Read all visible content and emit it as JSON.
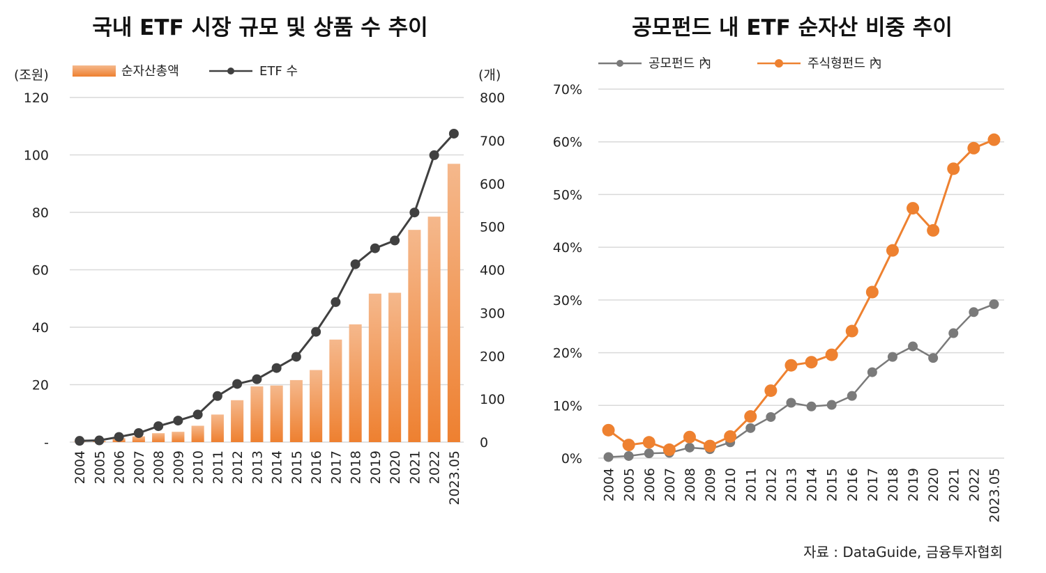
{
  "source": "자료 : DataGuide, 금융투자협회",
  "chart_data": [
    {
      "type": "bar+line",
      "title": "국내 ETF 시장 규모 및 상품 수 추이",
      "categories": [
        "2004",
        "2005",
        "2006",
        "2007",
        "2008",
        "2009",
        "2010",
        "2011",
        "2012",
        "2013",
        "2014",
        "2015",
        "2016",
        "2017",
        "2018",
        "2019",
        "2020",
        "2021",
        "2022",
        "2023.05"
      ],
      "left_unit": "(조원)",
      "right_unit": "(개)",
      "left_ylim": [
        0,
        120
      ],
      "right_ylim": [
        0,
        800
      ],
      "left_ticks": [
        "120",
        "100",
        "80",
        "60",
        "40",
        "20",
        "-"
      ],
      "left_tick_values": [
        120,
        100,
        80,
        60,
        40,
        20,
        0
      ],
      "right_ticks": [
        "800",
        "700",
        "600",
        "500",
        "400",
        "300",
        "200",
        "100",
        "0"
      ],
      "right_tick_values": [
        800,
        700,
        600,
        500,
        400,
        300,
        200,
        100,
        0
      ],
      "grid": true,
      "legend_position": "top-left",
      "series": [
        {
          "name": "순자산총액",
          "kind": "bar",
          "axis": "left",
          "color": "#f08a3c",
          "values": [
            0.1,
            0.4,
            1.4,
            2.0,
            3.1,
            3.6,
            5.7,
            9.6,
            14.6,
            19.4,
            19.7,
            21.6,
            25.1,
            35.7,
            41.0,
            51.7,
            52.0,
            73.9,
            78.5,
            96.9
          ]
        },
        {
          "name": "ETF 수",
          "kind": "line",
          "axis": "right",
          "color": "#404040",
          "values": [
            3,
            4,
            12,
            21,
            37,
            50,
            64,
            107,
            135,
            146,
            172,
            198,
            256,
            325,
            413,
            450,
            468,
            533,
            666,
            716
          ]
        }
      ]
    },
    {
      "type": "line",
      "title": "공모펀드 내 ETF 순자산 비중 추이",
      "categories": [
        "2004",
        "2005",
        "2006",
        "2007",
        "2008",
        "2009",
        "2010",
        "2011",
        "2012",
        "2013",
        "2014",
        "2015",
        "2016",
        "2017",
        "2018",
        "2019",
        "2020",
        "2021",
        "2022",
        "2023.05"
      ],
      "ylim": [
        0,
        70
      ],
      "y_ticks": [
        "70%",
        "60%",
        "50%",
        "40%",
        "30%",
        "20%",
        "10%",
        "0%"
      ],
      "y_tick_values": [
        70,
        60,
        50,
        40,
        30,
        20,
        10,
        0
      ],
      "grid": true,
      "legend_position": "top-left",
      "series": [
        {
          "name": "공모펀드 內",
          "color": "#7a7a7a",
          "values": [
            0.2,
            0.4,
            0.9,
            1.0,
            2.0,
            1.7,
            3.0,
            5.7,
            7.8,
            10.5,
            9.8,
            10.1,
            11.8,
            16.3,
            19.2,
            21.2,
            19.0,
            23.7,
            27.7,
            29.2
          ]
        },
        {
          "name": "주식형펀드 內",
          "color": "#ee8130",
          "values": [
            5.3,
            2.5,
            3.0,
            1.6,
            4.0,
            2.3,
            4.1,
            7.9,
            12.8,
            17.6,
            18.2,
            19.6,
            24.1,
            31.5,
            39.4,
            47.4,
            43.2,
            54.9,
            58.8,
            60.4
          ]
        }
      ]
    }
  ]
}
